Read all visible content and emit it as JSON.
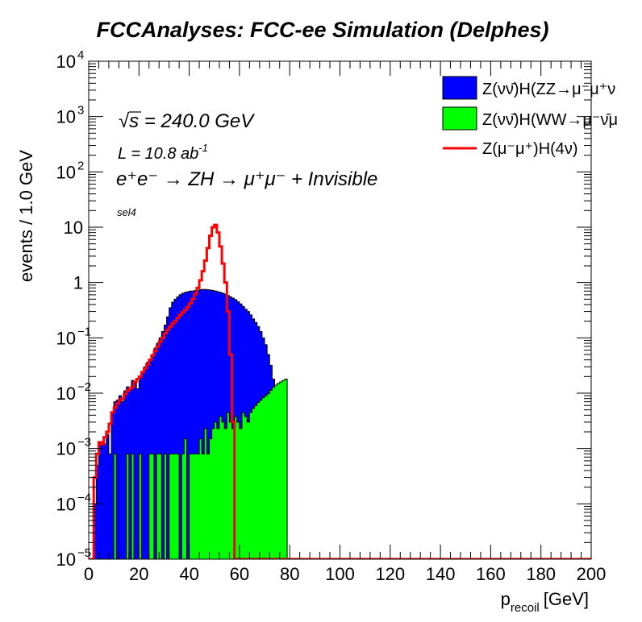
{
  "chart_data": {
    "type": "histogram",
    "title": "FCCAnalyses: FCC-ee Simulation (Delphes)",
    "xlabel": "p",
    "xlabel_sub": "recoil",
    "xlabel_unit": "[GeV]",
    "ylabel": "events / 1.0 GeV",
    "xlim": [
      0,
      200
    ],
    "ylim": [
      1e-05,
      10000.0
    ],
    "yscale": "log",
    "x_ticks": [
      "0",
      "20",
      "40",
      "60",
      "80",
      "100",
      "120",
      "140",
      "160",
      "180",
      "200"
    ],
    "y_ticks": [
      {
        "base": "10",
        "exp": "−5"
      },
      {
        "base": "10",
        "exp": "−4"
      },
      {
        "base": "10",
        "exp": "−3"
      },
      {
        "base": "10",
        "exp": "−2"
      },
      {
        "base": "10",
        "exp": "−1"
      },
      {
        "base": "1",
        "exp": ""
      },
      {
        "base": "10",
        "exp": ""
      },
      {
        "base": "10",
        "exp": "2"
      },
      {
        "base": "10",
        "exp": "3"
      },
      {
        "base": "10",
        "exp": "4"
      }
    ],
    "annotations": {
      "energy_sym": "√s",
      "energy_rest": " = 240.0 GeV",
      "lumi_main": "L = 10.8 ab",
      "lumi_exp": "-1",
      "process": "e⁺e⁻ → ZH → μ⁺μ⁻ + Invisible",
      "selection": "sel4"
    },
    "legend_position": "top-right",
    "series": [
      {
        "name": "Z(νν̄)H(ZZ→μ⁻μ⁺ν",
        "style": "filled",
        "color": "#0000ff",
        "edge_color": "#000000",
        "bin_width": 1,
        "x_start": 0,
        "values": [
          0,
          1e-05,
          0.0001,
          0.0005,
          0.0012,
          0.0013,
          0.0012,
          0.0018,
          0.0008,
          0.0045,
          0.007,
          0.0075,
          0.009,
          0.007,
          0.011,
          0.013,
          0.012,
          0.017,
          0.015,
          0.012,
          0.019,
          0.023,
          0.03,
          0.036,
          0.04,
          0.05,
          0.065,
          0.08,
          0.1,
          0.13,
          0.17,
          0.24,
          0.35,
          0.44,
          0.5,
          0.55,
          0.6,
          0.64,
          0.66,
          0.68,
          0.7,
          0.7,
          0.72,
          0.72,
          0.74,
          0.75,
          0.75,
          0.74,
          0.73,
          0.72,
          0.7,
          0.68,
          0.66,
          0.64,
          0.61,
          0.58,
          0.55,
          0.52,
          0.49,
          0.45,
          0.41,
          0.37,
          0.33,
          0.3,
          0.26,
          0.22,
          0.19,
          0.16,
          0.13,
          0.1,
          0.075,
          0.05,
          0.032,
          0.018,
          0.009,
          0.003,
          0.0007,
          0,
          0
        ]
      },
      {
        "name": "Z(νν̄)H(WW→μ⁻ν̄μ",
        "style": "filled",
        "color": "#00ff00",
        "edge_color": "#000000",
        "bin_width": 1,
        "x_start": 0,
        "values": [
          0,
          0,
          0,
          0,
          0,
          0,
          0,
          0,
          0,
          0,
          0.0008,
          0,
          0,
          0,
          0,
          0.0008,
          0,
          0.0008,
          0,
          0,
          0.0008,
          0,
          0,
          0,
          0.0008,
          0.0008,
          0,
          0.0008,
          0.0008,
          0,
          0.0008,
          0,
          0.0008,
          0.0008,
          0.0008,
          0.0008,
          0,
          0.0008,
          0.0015,
          0,
          0.0008,
          0.0008,
          0.0008,
          0.0008,
          0.0015,
          0.0008,
          0.0023,
          0.0008,
          0.0015,
          0.0023,
          0.003,
          0.0023,
          0.0038,
          0.003,
          0.0023,
          0.0045,
          0.003,
          0.0023,
          0.0038,
          0.003,
          0.0023,
          0.0045,
          0.0038,
          0.003,
          0.0045,
          0.0053,
          0.006,
          0.0068,
          0.0075,
          0.0083,
          0.009,
          0.0098,
          0.0113,
          0.0128,
          0.014,
          0.015,
          0.016,
          0.017,
          0.018
        ]
      },
      {
        "name": "Z(μ⁻μ⁺)H(4ν)",
        "style": "line",
        "color": "#ff0000",
        "bin_width": 1,
        "x_start": 0,
        "values": [
          0,
          1e-05,
          0.0003,
          0.0008,
          0.0013,
          0.0012,
          0.0016,
          0.002,
          0.0028,
          0.0045,
          0.0055,
          0.0065,
          0.0075,
          0.008,
          0.0095,
          0.011,
          0.012,
          0.013,
          0.016,
          0.018,
          0.02,
          0.024,
          0.028,
          0.033,
          0.04,
          0.048,
          0.058,
          0.07,
          0.085,
          0.1,
          0.12,
          0.14,
          0.16,
          0.18,
          0.2,
          0.23,
          0.26,
          0.29,
          0.32,
          0.36,
          0.42,
          0.5,
          0.62,
          0.8,
          1.1,
          1.6,
          2.5,
          4.2,
          7,
          10,
          11,
          8,
          4.5,
          2.2,
          1,
          0.3,
          0.05,
          0.003,
          1e-05
        ]
      }
    ]
  }
}
